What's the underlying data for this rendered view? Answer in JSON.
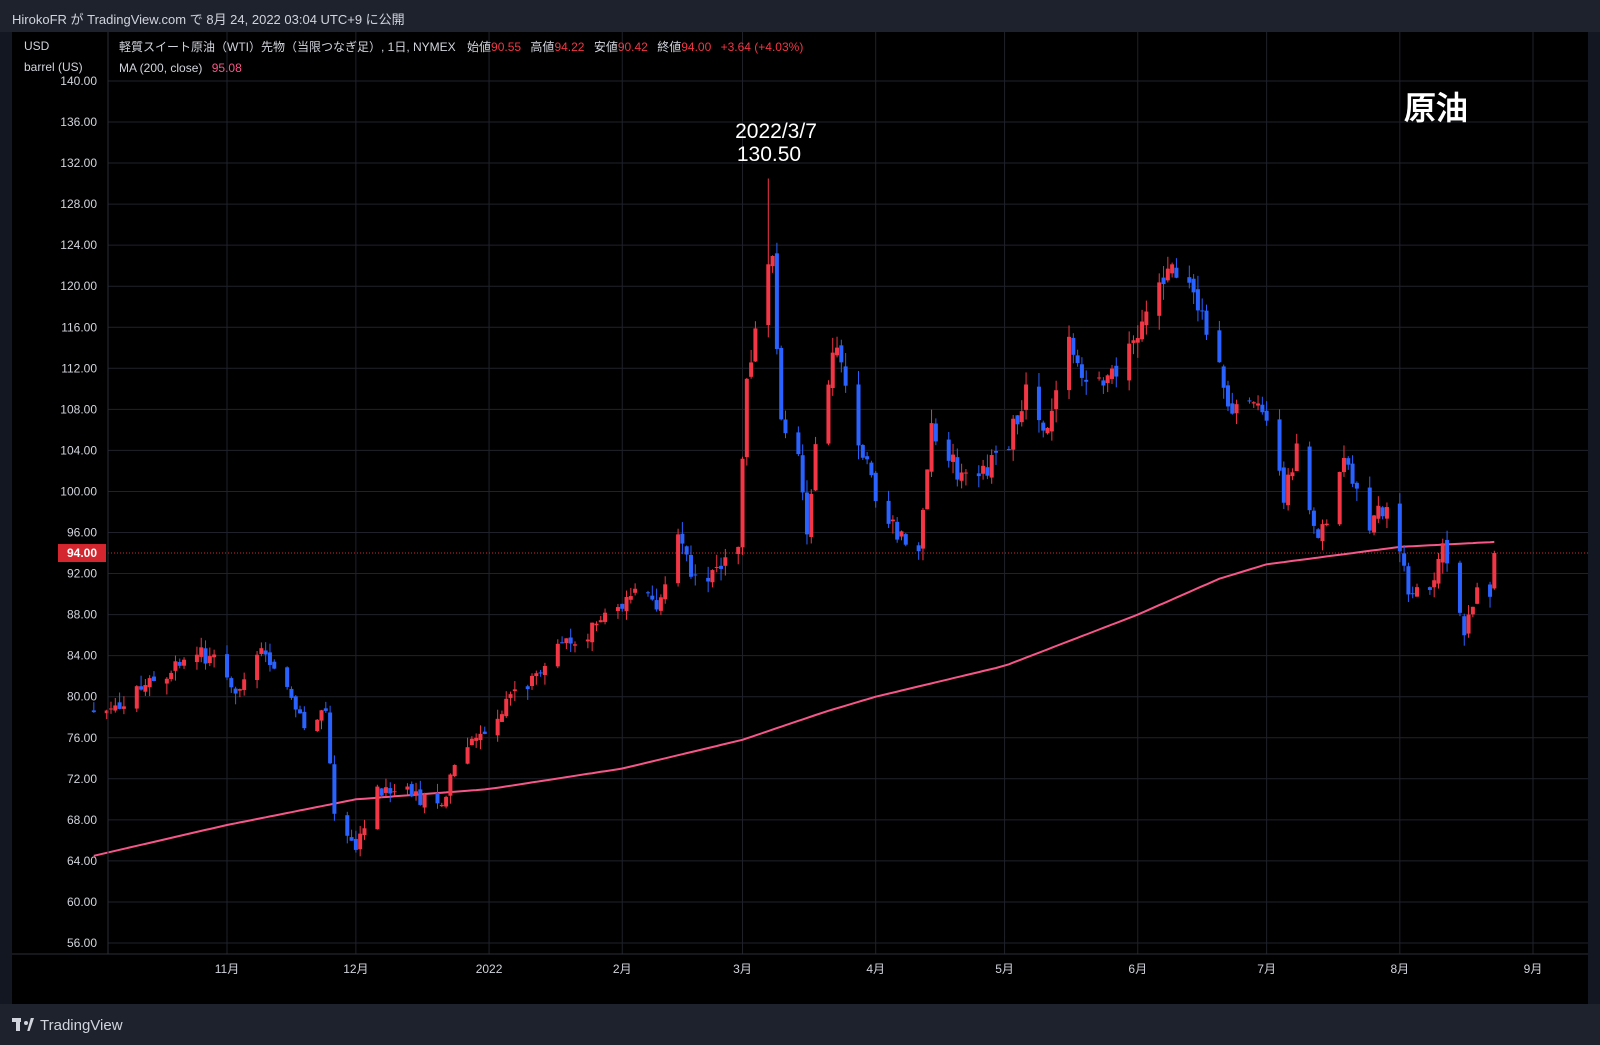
{
  "header": {
    "publish_line": "HirokoFR が TradingView.com で 8月 24, 2022 03:04 UTC+9 に公開"
  },
  "legend": {
    "unit_line1": "USD",
    "unit_line2": "barrel (US)",
    "symbol": "軽質スイート原油（WTI）先物（当限つなぎ足）, 1日, NYMEX",
    "open_label": "始値",
    "open_value": "90.55",
    "high_label": "高値",
    "high_value": "94.22",
    "low_label": "安値",
    "low_value": "90.42",
    "close_label": "終値",
    "close_value": "94.00",
    "change": "+3.64 (+4.03%)",
    "ma_label": "MA (200, close)",
    "ma_value": "95.08"
  },
  "annotations": {
    "peak_date": "2022/3/7",
    "peak_value": "130.50",
    "corner_title": "原油"
  },
  "footer": {
    "brand": "TradingView"
  },
  "colors": {
    "up": "#f23645",
    "down": "#2962ff",
    "ma": "#f7568a",
    "background": "#000000",
    "frame": "#131722",
    "grid": "#1f222a",
    "price_tag": "#d3262e",
    "text": "#d1d4dc"
  },
  "chart_data": {
    "type": "candlestick",
    "y_axis": {
      "ylim": [
        55,
        141
      ],
      "ticks": [
        "56.00",
        "60.00",
        "64.00",
        "68.00",
        "72.00",
        "76.00",
        "80.00",
        "84.00",
        "88.00",
        "92.00",
        "96.00",
        "100.00",
        "104.00",
        "108.00",
        "112.00",
        "116.00",
        "120.00",
        "124.00",
        "128.00",
        "132.00",
        "136.00",
        "140.00"
      ],
      "current_price": "94.00"
    },
    "x_axis": {
      "start": "2021-10-01",
      "end": "2022-09-06",
      "ticks": [
        {
          "label": "11月",
          "date": "2021-11-01"
        },
        {
          "label": "12月",
          "date": "2021-12-01"
        },
        {
          "label": "2022",
          "date": "2022-01-01"
        },
        {
          "label": "2月",
          "date": "2022-02-01"
        },
        {
          "label": "3月",
          "date": "2022-03-01"
        },
        {
          "label": "4月",
          "date": "2022-04-01"
        },
        {
          "label": "5月",
          "date": "2022-05-01"
        },
        {
          "label": "6月",
          "date": "2022-06-01"
        },
        {
          "label": "7月",
          "date": "2022-07-01"
        },
        {
          "label": "8月",
          "date": "2022-08-01"
        },
        {
          "label": "9月",
          "date": "2022-09-01"
        }
      ]
    },
    "close_anchors": [
      [
        "2021-10-01",
        78.5
      ],
      [
        "2021-10-06",
        79
      ],
      [
        "2021-10-12",
        80.5
      ],
      [
        "2021-10-19",
        82.5
      ],
      [
        "2021-10-26",
        84
      ],
      [
        "2021-10-29",
        84
      ],
      [
        "2021-11-04",
        80.5
      ],
      [
        "2021-11-09",
        84
      ],
      [
        "2021-11-15",
        81
      ],
      [
        "2021-11-19",
        76.5
      ],
      [
        "2021-11-24",
        78.5
      ],
      [
        "2021-11-26",
        68.5
      ],
      [
        "2021-12-01",
        65.5
      ],
      [
        "2021-12-06",
        71
      ],
      [
        "2021-12-13",
        71
      ],
      [
        "2021-12-20",
        69
      ],
      [
        "2021-12-27",
        75.5
      ],
      [
        "2022-01-06",
        79.5
      ],
      [
        "2022-01-12",
        82.5
      ],
      [
        "2022-01-20",
        85.5
      ],
      [
        "2022-01-27",
        87
      ],
      [
        "2022-02-03",
        90
      ],
      [
        "2022-02-10",
        89
      ],
      [
        "2022-02-14",
        95
      ],
      [
        "2022-02-18",
        91
      ],
      [
        "2022-02-24",
        92.5
      ],
      [
        "2022-02-28",
        95.5
      ],
      [
        "2022-03-02",
        110
      ],
      [
        "2022-03-04",
        116
      ],
      [
        "2022-03-07",
        121
      ],
      [
        "2022-03-08",
        123.5
      ],
      [
        "2022-03-10",
        106
      ],
      [
        "2022-03-14",
        103
      ],
      [
        "2022-03-16",
        95
      ],
      [
        "2022-03-18",
        104.5
      ],
      [
        "2022-03-23",
        114.5
      ],
      [
        "2022-03-28",
        105.5
      ],
      [
        "2022-04-01",
        99
      ],
      [
        "2022-04-06",
        96
      ],
      [
        "2022-04-11",
        94.5
      ],
      [
        "2022-04-14",
        106.5
      ],
      [
        "2022-04-20",
        102
      ],
      [
        "2022-04-26",
        101.5
      ],
      [
        "2022-05-02",
        105
      ],
      [
        "2022-05-06",
        110
      ],
      [
        "2022-05-11",
        105.5
      ],
      [
        "2022-05-16",
        114
      ],
      [
        "2022-05-20",
        110
      ],
      [
        "2022-05-25",
        110.5
      ],
      [
        "2022-06-01",
        115
      ],
      [
        "2022-06-08",
        122
      ],
      [
        "2022-06-13",
        120.5
      ],
      [
        "2022-06-16",
        117.5
      ],
      [
        "2022-06-21",
        110
      ],
      [
        "2022-06-24",
        107.5
      ],
      [
        "2022-06-29",
        109.5
      ],
      [
        "2022-07-05",
        99.5
      ],
      [
        "2022-07-08",
        104.5
      ],
      [
        "2022-07-12",
        95.8
      ],
      [
        "2022-07-15",
        97.6
      ],
      [
        "2022-07-19",
        104
      ],
      [
        "2022-07-25",
        96.7
      ],
      [
        "2022-07-29",
        98.6
      ],
      [
        "2022-08-03",
        90.7
      ],
      [
        "2022-08-08",
        90.8
      ],
      [
        "2022-08-11",
        94.3
      ],
      [
        "2022-08-16",
        86.5
      ],
      [
        "2022-08-19",
        90.8
      ],
      [
        "2022-08-22",
        90.4
      ],
      [
        "2022-08-23",
        94
      ]
    ],
    "moving_average": {
      "name": "MA (200, close)",
      "points": [
        [
          "2021-10-01",
          64.5
        ],
        [
          "2021-11-01",
          67.5
        ],
        [
          "2021-12-01",
          70
        ],
        [
          "2022-01-01",
          71
        ],
        [
          "2022-02-01",
          73
        ],
        [
          "2022-03-01",
          75.8
        ],
        [
          "2022-03-20",
          78.5
        ],
        [
          "2022-04-01",
          80
        ],
        [
          "2022-05-01",
          83
        ],
        [
          "2022-06-01",
          88
        ],
        [
          "2022-06-20",
          91.5
        ],
        [
          "2022-07-01",
          92.9
        ],
        [
          "2022-08-01",
          94.6
        ],
        [
          "2022-08-23",
          95.08
        ]
      ]
    }
  }
}
